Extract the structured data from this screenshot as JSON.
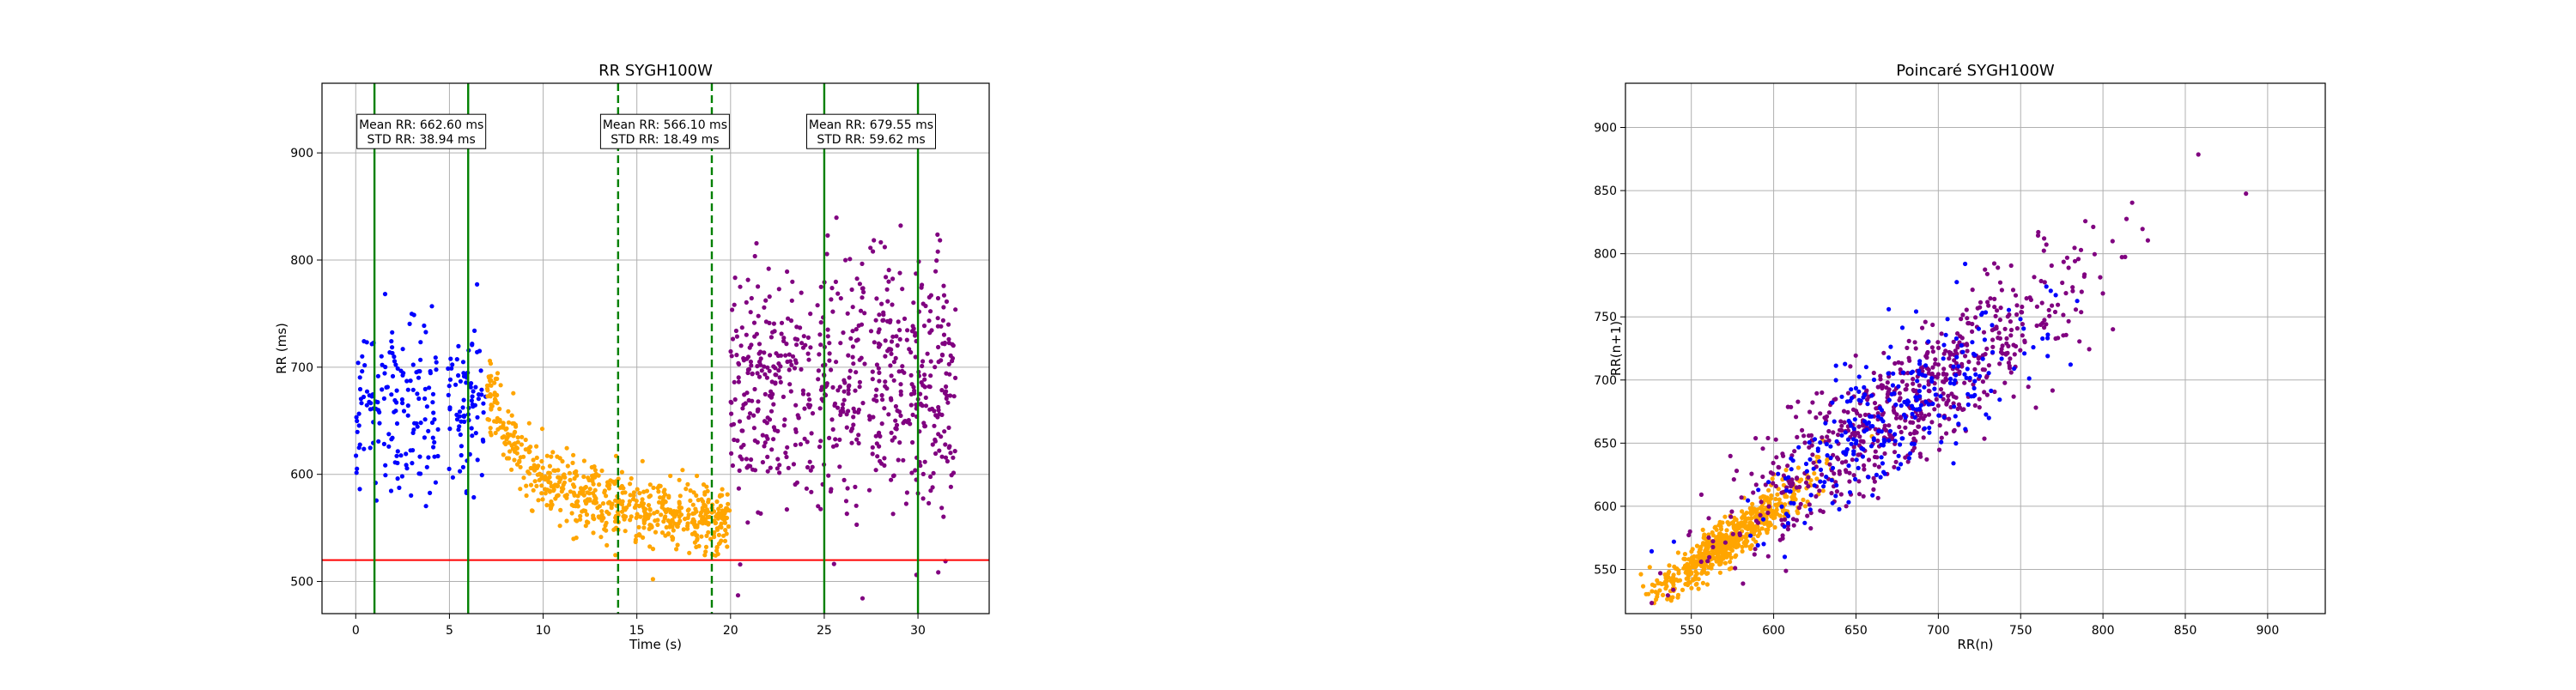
{
  "chart_data": [
    {
      "type": "scatter",
      "title": "RR SYGH100W",
      "xlabel": "Time (s)",
      "ylabel": "RR (ms)",
      "xlim": [
        -1.8,
        33.8
      ],
      "ylim": [
        470,
        965
      ],
      "xticks": [
        0,
        5,
        10,
        15,
        20,
        25,
        30
      ],
      "yticks": [
        500,
        600,
        700,
        800,
        900
      ],
      "grid": true,
      "threshold_line": {
        "y": 520,
        "color": "#ff0000"
      },
      "vlines": [
        {
          "x": 1.0,
          "color": "#008000",
          "style": "solid"
        },
        {
          "x": 6.0,
          "color": "#008000",
          "style": "solid"
        },
        {
          "x": 14.0,
          "color": "#008000",
          "style": "dashed"
        },
        {
          "x": 19.0,
          "color": "#008000",
          "style": "dashed"
        },
        {
          "x": 25.0,
          "color": "#008000",
          "style": "solid"
        },
        {
          "x": 30.0,
          "color": "#008000",
          "style": "solid"
        }
      ],
      "annotations": [
        {
          "x": 3.5,
          "y": 920,
          "line1": "Mean RR: 662.60 ms",
          "line2": "STD RR: 38.94 ms"
        },
        {
          "x": 16.5,
          "y": 920,
          "line1": "Mean RR: 566.10 ms",
          "line2": "STD RR: 18.49 ms"
        },
        {
          "x": 27.5,
          "y": 920,
          "line1": "Mean RR: 679.55 ms",
          "line2": "STD RR: 59.62 ms"
        }
      ],
      "series": [
        {
          "color": "#0000ff",
          "x_range": [
            0,
            7
          ],
          "gap": [
            4.4,
            4.9
          ],
          "mean": 665,
          "std": 39,
          "count": 280,
          "trend": []
        },
        {
          "color": "#ffa500",
          "x_range": [
            7,
            20
          ],
          "count": 640,
          "std": 16,
          "trend": [
            [
              7,
              680
            ],
            [
              8,
              640
            ],
            [
              9,
              610
            ],
            [
              10,
              590
            ],
            [
              12,
              580
            ],
            [
              14,
              572
            ],
            [
              16,
              566
            ],
            [
              18,
              562
            ],
            [
              20,
              555
            ]
          ]
        },
        {
          "color": "#800080",
          "x_range": [
            20,
            32
          ],
          "gaps": [
            [
              24.4,
              24.6
            ],
            [
              27.2,
              27.4
            ]
          ],
          "mean": 680,
          "std": 58,
          "count": 680,
          "trend": []
        }
      ]
    },
    {
      "type": "scatter",
      "title": "Poincaré SYGH100W",
      "xlabel": "RR(n)",
      "ylabel": "RR(n+1)",
      "xlim": [
        510,
        935
      ],
      "ylim": [
        515,
        935
      ],
      "xticks": [
        550,
        600,
        650,
        700,
        750,
        800,
        850,
        900
      ],
      "yticks": [
        550,
        600,
        650,
        700,
        750,
        800,
        850,
        900
      ],
      "grid": true,
      "series": [
        {
          "color": "#ffa500",
          "center": 572,
          "spread": 24,
          "noise": 9,
          "count": 640
        },
        {
          "color": "#800080",
          "center": 680,
          "spread": 56,
          "noise": 26,
          "count": 680
        },
        {
          "color": "#0000ff",
          "center": 668,
          "spread": 40,
          "noise": 28,
          "count": 280
        }
      ]
    }
  ]
}
